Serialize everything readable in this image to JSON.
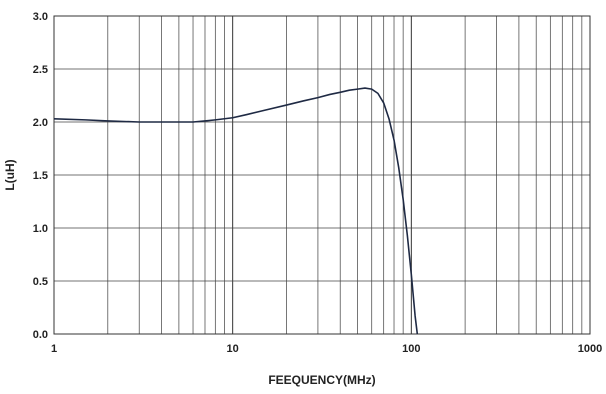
{
  "chart_data": {
    "type": "line",
    "title": "",
    "xlabel": "FEEQUENCY(MHz)",
    "ylabel": "L(uH)",
    "xscale": "log",
    "xlim": [
      1,
      1000
    ],
    "ylim": [
      0,
      3.0
    ],
    "grid": true,
    "x_ticks": [
      "1",
      "10",
      "100",
      "1000"
    ],
    "y_ticks": [
      "0.0",
      "0.5",
      "1.0",
      "1.5",
      "2.0",
      "2.5",
      "3.0"
    ],
    "series": [
      {
        "line_color": "#1f2a44",
        "x": [
          1,
          1.5,
          2,
          3,
          4,
          5,
          6,
          7,
          8,
          10,
          12,
          15,
          20,
          25,
          30,
          35,
          40,
          45,
          50,
          55,
          60,
          65,
          70,
          75,
          80,
          85,
          90,
          95,
          100,
          105,
          108
        ],
        "y": [
          2.03,
          2.02,
          2.01,
          2.0,
          2.0,
          2.0,
          2.0,
          2.01,
          2.02,
          2.04,
          2.07,
          2.11,
          2.16,
          2.2,
          2.23,
          2.26,
          2.28,
          2.3,
          2.31,
          2.32,
          2.31,
          2.27,
          2.18,
          2.03,
          1.83,
          1.57,
          1.27,
          0.93,
          0.56,
          0.17,
          0.0
        ]
      }
    ]
  }
}
